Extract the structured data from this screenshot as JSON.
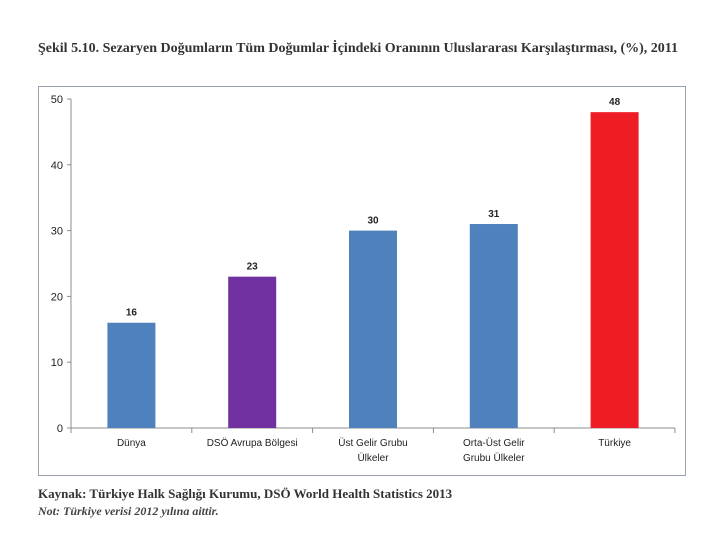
{
  "figure": {
    "title": "Şekil 5.10. Sezaryen Doğumların Tüm Doğumlar İçindeki Oranının Uluslararası Karşılaştırması, (%), 2011",
    "source": "Kaynak: Türkiye Halk Sağlığı Kurumu, DSÖ World Health Statistics 2013",
    "note": "Not: Türkiye verisi 2012 yılına aittir."
  },
  "chart_data": {
    "type": "bar",
    "title": "Şekil 5.10. Sezaryen Doğumların Tüm Doğumlar İçindeki Oranının Uluslararası Karşılaştırması, (%), 2011",
    "xlabel": "",
    "ylabel": "",
    "ylim": [
      0,
      50
    ],
    "yticks": [
      0,
      10,
      20,
      30,
      40,
      50
    ],
    "grid": false,
    "categories": [
      [
        "Dünya"
      ],
      [
        "DSÖ Avrupa Bölgesi"
      ],
      [
        "Üst Gelir Grubu",
        "Ülkeler"
      ],
      [
        "Orta-Üst Gelir",
        "Grubu Ülkeler"
      ],
      [
        "Türkiye"
      ]
    ],
    "values": [
      16,
      23,
      30,
      31,
      48
    ],
    "colors": [
      "#4f81bd",
      "#7030a0",
      "#4f81bd",
      "#4f81bd",
      "#ee1c25"
    ]
  }
}
